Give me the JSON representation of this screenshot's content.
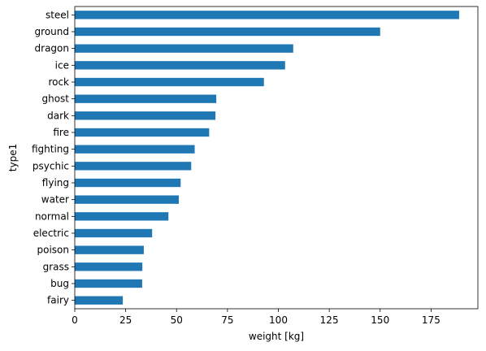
{
  "chart_data": {
    "type": "bar",
    "orientation": "horizontal",
    "categories": [
      "steel",
      "ground",
      "dragon",
      "ice",
      "rock",
      "ghost",
      "dark",
      "fire",
      "fighting",
      "psychic",
      "flying",
      "water",
      "normal",
      "electric",
      "poison",
      "grass",
      "bug",
      "fairy"
    ],
    "values": [
      188.8,
      150.0,
      107.3,
      103.3,
      92.9,
      69.5,
      69.1,
      66.0,
      58.9,
      57.2,
      52.0,
      51.1,
      46.0,
      38.0,
      33.9,
      33.2,
      33.1,
      23.6
    ],
    "xlabel": "weight [kg]",
    "ylabel": "type1",
    "xlim": [
      0,
      198
    ],
    "xticks": [
      0,
      25,
      50,
      75,
      100,
      125,
      150,
      175
    ],
    "grid": false,
    "legend": "none",
    "bar_color": "#1f77b4"
  }
}
